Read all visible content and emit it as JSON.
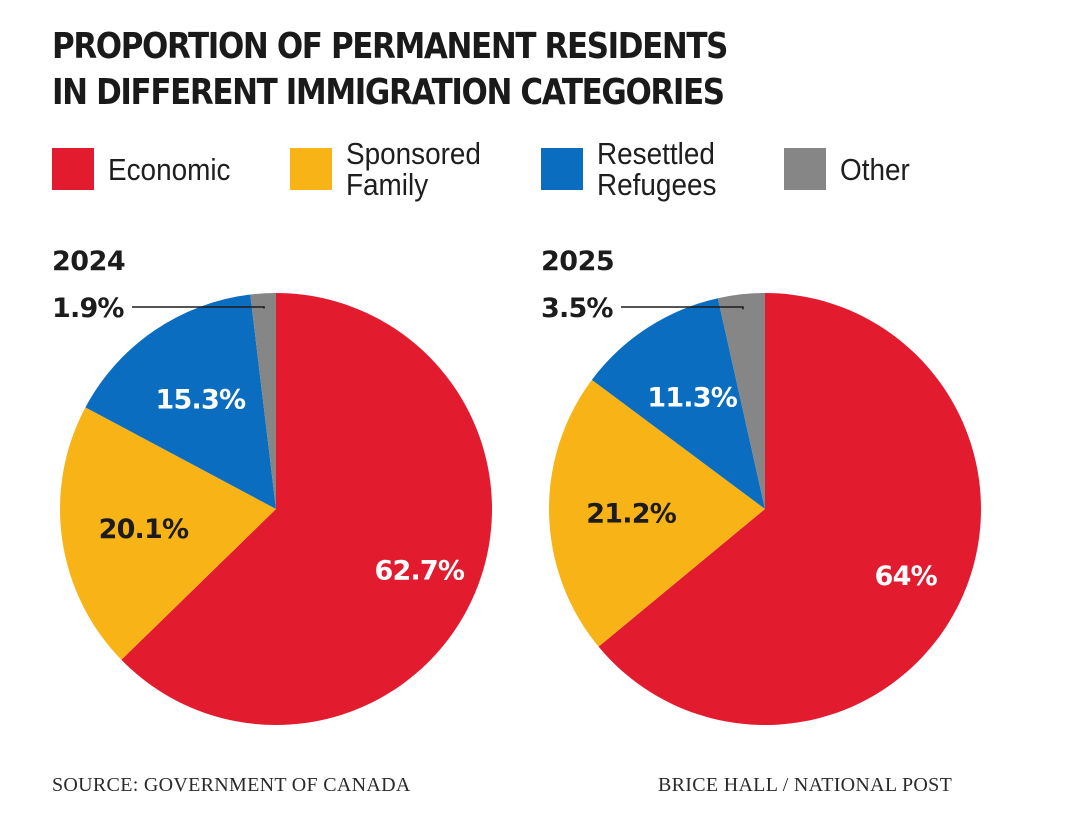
{
  "title_line1": "PROPORTION OF PERMANENT RESIDENTS",
  "title_line2": "IN DIFFERENT IMMIGRATION CATEGORIES",
  "legend": [
    {
      "label": "Economic",
      "color": "#e31b2f"
    },
    {
      "label": "Sponsored\nFamily",
      "color": "#f8b316"
    },
    {
      "label": "Resettled\nRefugees",
      "color": "#0b6dbf"
    },
    {
      "label": "Other",
      "color": "#868686"
    }
  ],
  "chart_data": [
    {
      "type": "pie",
      "title": "2024",
      "slices": [
        {
          "label": "Economic",
          "value": 62.7,
          "display": "62.7%",
          "color": "#e31b2f"
        },
        {
          "label": "Sponsored Family",
          "value": 20.1,
          "display": "20.1%",
          "color": "#f8b316"
        },
        {
          "label": "Resettled Refugees",
          "value": 15.3,
          "display": "15.3%",
          "color": "#0b6dbf"
        },
        {
          "label": "Other",
          "value": 1.9,
          "display": "1.9%",
          "color": "#868686"
        }
      ]
    },
    {
      "type": "pie",
      "title": "2025",
      "slices": [
        {
          "label": "Economic",
          "value": 64,
          "display": "64%",
          "color": "#e31b2f"
        },
        {
          "label": "Sponsored Family",
          "value": 21.2,
          "display": "21.2%",
          "color": "#f8b316"
        },
        {
          "label": "Resettled Refugees",
          "value": 11.3,
          "display": "11.3%",
          "color": "#0b6dbf"
        },
        {
          "label": "Other",
          "value": 3.5,
          "display": "3.5%",
          "color": "#868686"
        }
      ]
    }
  ],
  "source": "SOURCE: GOVERNMENT OF CANADA",
  "credit": "BRICE HALL  / NATIONAL POST"
}
